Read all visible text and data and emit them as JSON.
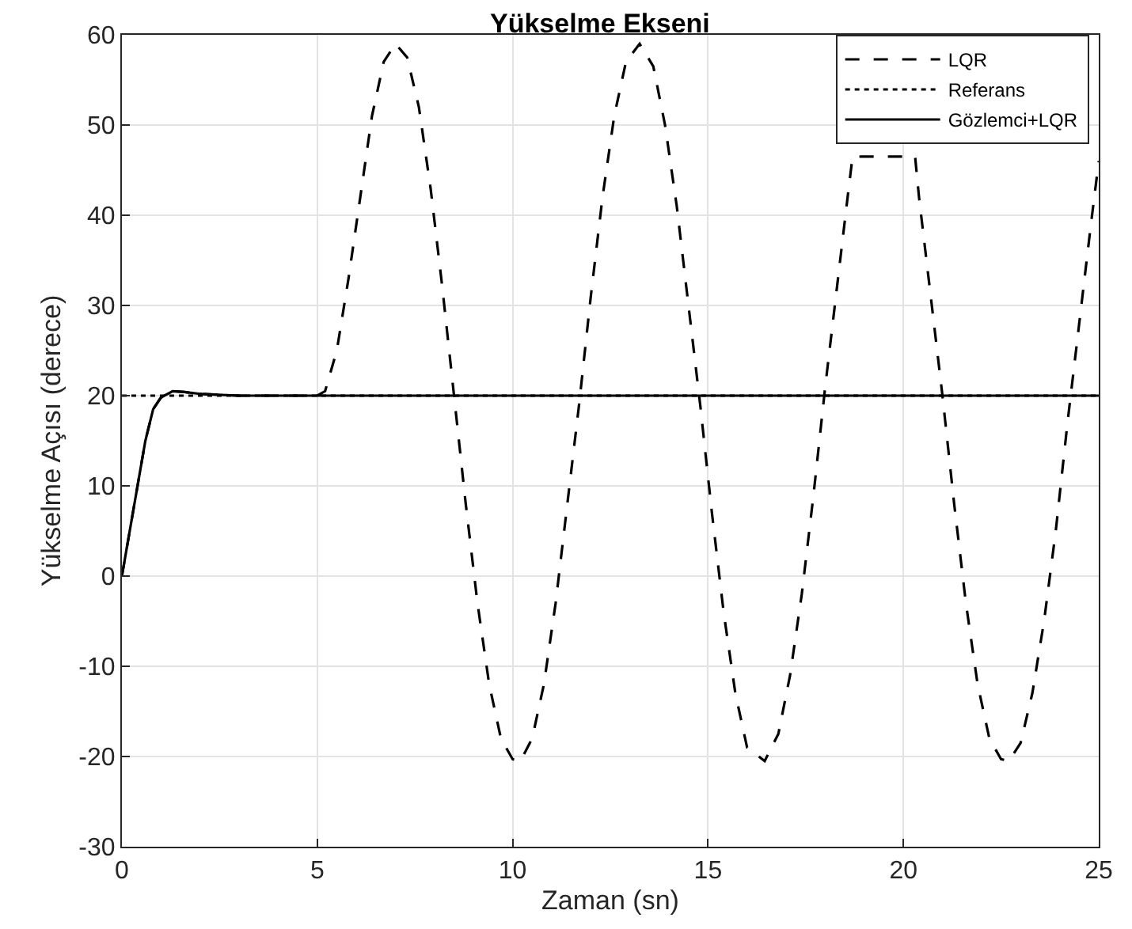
{
  "chart_data": {
    "type": "line",
    "title": "Yükselme Ekseni",
    "xlabel": "Zaman (sn)",
    "ylabel": "Yükselme Açısı (derece)",
    "xlim": [
      0,
      25
    ],
    "xticks": [
      0,
      5,
      10,
      15,
      20,
      25
    ],
    "ylim": [
      -30,
      60
    ],
    "yticks": [
      -30,
      -20,
      -10,
      0,
      10,
      20,
      30,
      40,
      50,
      60
    ],
    "grid": true,
    "legend": "top right",
    "marker": "none",
    "series": [
      {
        "name": "LQR",
        "color": "#000000",
        "line_style": "dashed",
        "x": [
          0,
          0.2,
          0.4,
          0.6,
          0.8,
          1,
          1.3,
          1.6,
          2,
          3,
          5,
          5.2,
          5.5,
          5.8,
          6.1,
          6.4,
          6.7,
          7.0,
          7.3,
          7.6,
          7.9,
          8.2,
          8.5,
          8.8,
          9.1,
          9.4,
          9.7,
          10.0,
          10.2,
          10.5,
          10.8,
          11.1,
          11.4,
          11.7,
          12.0,
          12.3,
          12.6,
          12.9,
          13.25,
          13.6,
          13.9,
          14.2,
          14.5,
          14.8,
          15.1,
          15.4,
          15.7,
          16.0,
          16.45,
          16.8,
          17.1,
          17.4,
          17.7,
          18.0,
          18.3,
          18.6,
          18.7,
          20.3,
          20.4,
          20.7,
          21.0,
          21.3,
          21.6,
          21.9,
          22.2,
          22.5,
          22.7,
          23.0,
          23.3,
          23.6,
          23.9,
          24.2,
          24.5,
          24.8,
          25
        ],
        "values": [
          0,
          5,
          10,
          15,
          18.5,
          19.8,
          20.5,
          20.4,
          20.2,
          20,
          20,
          20.5,
          25,
          33,
          42,
          51,
          57,
          59,
          57.5,
          52,
          43,
          32,
          20,
          8,
          -3,
          -12,
          -18,
          -20.3,
          -20.5,
          -18,
          -12,
          -3,
          8,
          19,
          31,
          42,
          51,
          57,
          59,
          56.5,
          50,
          41,
          30,
          19,
          7,
          -4,
          -13,
          -19,
          -20.5,
          -17.5,
          -11,
          -2,
          9,
          21,
          32,
          43,
          46.5,
          46.5,
          42,
          31,
          20,
          8,
          -3,
          -12,
          -18,
          -20.3,
          -20.5,
          -18.5,
          -13,
          -5,
          5,
          17,
          28,
          39,
          46
        ]
      },
      {
        "name": "Referans",
        "color": "#000000",
        "line_style": "dotted",
        "x": [
          0,
          25
        ],
        "values": [
          20,
          20
        ]
      },
      {
        "name": "Gözlemci+LQR",
        "color": "#000000",
        "line_style": "solid",
        "x": [
          0,
          0.2,
          0.4,
          0.6,
          0.8,
          1,
          1.3,
          1.6,
          2,
          3,
          5,
          10,
          15,
          20,
          25
        ],
        "values": [
          0,
          5,
          10,
          15,
          18.5,
          19.8,
          20.5,
          20.4,
          20.2,
          20,
          20,
          20,
          20,
          20,
          20
        ]
      }
    ]
  }
}
